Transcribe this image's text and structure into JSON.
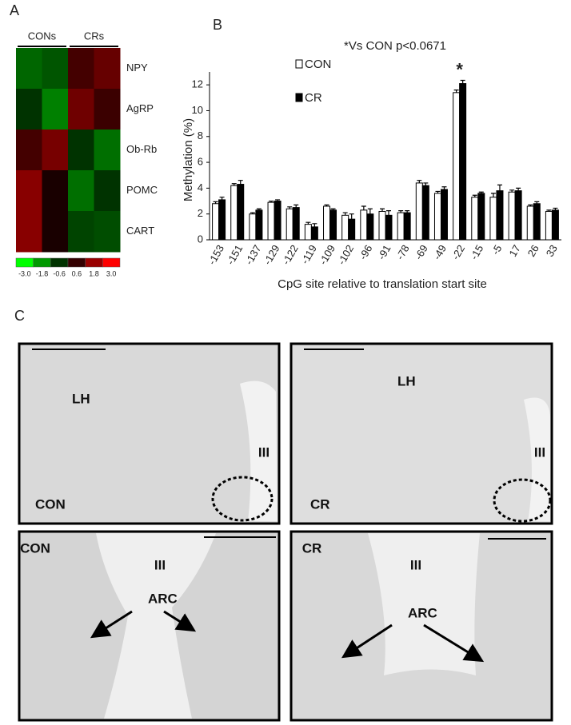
{
  "panel_labels": [
    "A",
    "B",
    "C"
  ],
  "chart_data": [
    {
      "type": "heatmap",
      "column_groups": [
        "CONs",
        "CRs"
      ],
      "rows": [
        "NPY",
        "AgRP",
        "Ob-Rb",
        "POMC",
        "CART"
      ],
      "values": [
        [
          -1.2,
          -1.0,
          0.8,
          1.2
        ],
        [
          -0.6,
          -1.5,
          1.3,
          0.7
        ],
        [
          0.8,
          1.4,
          -0.6,
          -1.3
        ],
        [
          1.6,
          0.3,
          -1.3,
          -0.6
        ],
        [
          1.6,
          0.3,
          -0.8,
          -0.9
        ]
      ],
      "colorbar_ticks": [
        {
          "value": -3,
          "label": "-3.0"
        },
        {
          "value": -1.8,
          "label": "-1.8"
        },
        {
          "value": -0.6,
          "label": "-0.6"
        },
        {
          "value": 0.6,
          "label": "0.6"
        },
        {
          "value": 1.8,
          "label": "1.8"
        },
        {
          "value": 3,
          "label": "3.0"
        }
      ],
      "colors": {
        "low": "#00ff00",
        "mid": "#000000",
        "high": "#ff0000"
      }
    },
    {
      "type": "bar",
      "annotation": "*Vs CON p<0.0671",
      "significance": {
        "text": "*",
        "category_index": 13
      },
      "y_label": "Methylation (%)",
      "x_label": "CpG site relative to translation start site",
      "categories": [
        "-153",
        "-151",
        "-137",
        "-129",
        "-122",
        "-119",
        "-109",
        "-102",
        "-96",
        "-91",
        "-78",
        "-69",
        "-49",
        "-22",
        "-15",
        "-5",
        "17",
        "26",
        "33"
      ],
      "series": [
        {
          "name": "CON",
          "color": "#ffffff",
          "values": [
            2.8,
            4.2,
            2.0,
            2.9,
            2.4,
            1.2,
            2.6,
            1.9,
            2.3,
            2.2,
            2.1,
            4.4,
            3.6,
            11.4,
            3.3,
            3.3,
            3.7,
            2.6,
            2.2
          ],
          "errors": [
            0.15,
            0.15,
            0.1,
            0.1,
            0.15,
            0.15,
            0.1,
            0.2,
            0.3,
            0.2,
            0.15,
            0.2,
            0.15,
            0.2,
            0.15,
            0.3,
            0.15,
            0.1,
            0.1
          ]
        },
        {
          "name": "CR",
          "color": "#000000",
          "values": [
            3.1,
            4.3,
            2.3,
            3.0,
            2.5,
            1.0,
            2.3,
            1.6,
            2.0,
            1.9,
            2.1,
            4.2,
            3.9,
            12.1,
            3.6,
            3.8,
            3.8,
            2.8,
            2.3
          ],
          "errors": [
            0.2,
            0.3,
            0.1,
            0.1,
            0.2,
            0.25,
            0.1,
            0.4,
            0.4,
            0.35,
            0.15,
            0.2,
            0.2,
            0.25,
            0.1,
            0.45,
            0.2,
            0.15,
            0.15
          ]
        }
      ],
      "ylim": [
        0,
        13
      ],
      "yticks": [
        0,
        2,
        4,
        6,
        8,
        10,
        12
      ],
      "grid": false
    }
  ],
  "micrographs": [
    {
      "labels": [
        "LH",
        "III",
        "CON"
      ]
    },
    {
      "labels": [
        "LH",
        "III",
        "CR"
      ]
    },
    {
      "labels": [
        "CON",
        "III",
        "ARC"
      ]
    },
    {
      "labels": [
        "CR",
        "III",
        "ARC"
      ]
    }
  ]
}
